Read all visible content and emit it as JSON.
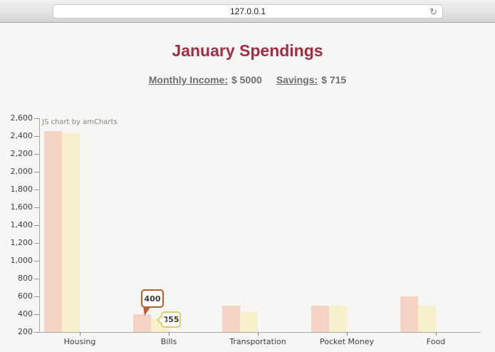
{
  "browser": {
    "url": "127.0.0.1",
    "reload_icon": "↻"
  },
  "header": {
    "income_label": "Monthly Income:",
    "income_value": "$ 5000",
    "savings_label": "Savings:",
    "savings_value": "$ 715"
  },
  "chart_data": {
    "type": "bar",
    "title": "January Spendings",
    "categories": [
      "Housing",
      "Bills",
      "Transportation",
      "Pocket Money",
      "Food"
    ],
    "series": [
      {
        "name": "orange-series",
        "fill": "#f4d3c5",
        "line_color": "#bf5b28",
        "values": [
          2455,
          400,
          500,
          500,
          600
        ]
      },
      {
        "name": "yellow-series",
        "fill": "#f8f0cb",
        "line_color": "#e2cb67",
        "values": [
          2440,
          355,
          425,
          500,
          500
        ]
      }
    ],
    "ylim": [
      200,
      2600
    ],
    "ytick_step": 200,
    "ytick_labels": [
      "2,600",
      "2,400",
      "2,200",
      "2,000",
      "1,800",
      "1,600",
      "1,400",
      "1,200",
      "1,000",
      "800",
      "600",
      "400",
      "200"
    ],
    "grid": false,
    "legend": "none",
    "credit": "JS chart by amCharts",
    "tooltips": [
      {
        "text": "400",
        "category": "Bills",
        "series": "orange-series"
      },
      {
        "text": "355",
        "category": "Bills",
        "series": "yellow-series"
      }
    ]
  }
}
